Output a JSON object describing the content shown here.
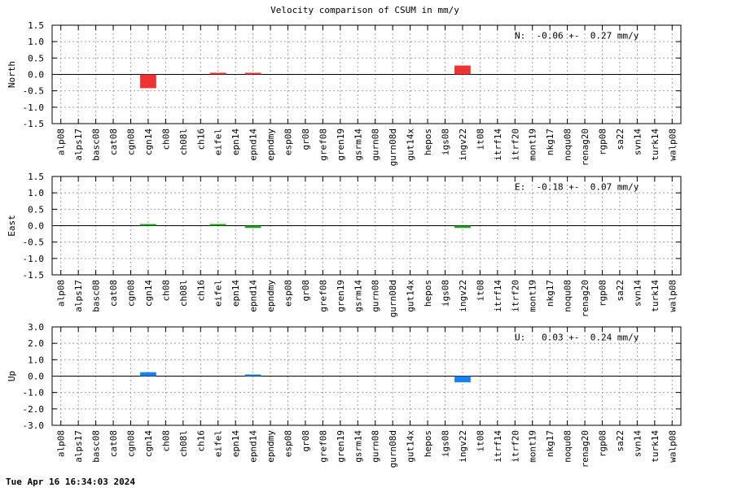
{
  "title": "Velocity comparison of CSUM in mm/y",
  "timestamp": "Tue Apr 16 16:34:03 2024",
  "chart_data": [
    {
      "type": "bar",
      "ylabel": "North",
      "ylim": [
        -1.5,
        1.5
      ],
      "yticks": [
        "1.5",
        "1.0",
        "0.5",
        "0.0",
        "-0.5",
        "-1.0",
        "-1.5"
      ],
      "grid": true,
      "color": "#f03232",
      "annotation": "N:  -0.06 +-  0.27 mm/y",
      "categories": [
        "alp08",
        "alps17",
        "basc08",
        "cat08",
        "cgn08",
        "cgn14",
        "ch08",
        "ch08l",
        "ch16",
        "eifel",
        "epn14",
        "epnd14",
        "epndmy",
        "esp08",
        "gr08",
        "gref08",
        "gren19",
        "gsrm14",
        "gurn08",
        "gurn08d",
        "gut14x",
        "hepos",
        "igs08",
        "ingv22",
        "it08",
        "itrf14",
        "itrf20",
        "mont19",
        "nkg17",
        "noqu08",
        "renag20",
        "rgp08",
        "sa22",
        "svn14",
        "turk14",
        "walp08"
      ],
      "values": [
        0,
        0,
        0,
        0,
        0,
        -0.42,
        0,
        0,
        0,
        0.04,
        0,
        0.02,
        0,
        0,
        0,
        0,
        0,
        0,
        0,
        0,
        0,
        0,
        0,
        0.27,
        0,
        0,
        0,
        0,
        0,
        0,
        0,
        0,
        0,
        0,
        0,
        0
      ]
    },
    {
      "type": "bar",
      "ylabel": "East",
      "ylim": [
        -1.5,
        1.5
      ],
      "yticks": [
        "1.5",
        "1.0",
        "0.5",
        "0.0",
        "-0.5",
        "-1.0",
        "-1.5"
      ],
      "grid": true,
      "color": "#1aa51a",
      "annotation": "E:  -0.18 +-  0.07 mm/y",
      "categories": [
        "alp08",
        "alps17",
        "basc08",
        "cat08",
        "cgn08",
        "cgn14",
        "ch08",
        "ch08l",
        "ch16",
        "eifel",
        "epn14",
        "epnd14",
        "epndmy",
        "esp08",
        "gr08",
        "gref08",
        "gren19",
        "gsrm14",
        "gurn08",
        "gurn08d",
        "gut14x",
        "hepos",
        "igs08",
        "ingv22",
        "it08",
        "itrf14",
        "itrf20",
        "mont19",
        "nkg17",
        "noqu08",
        "renag20",
        "rgp08",
        "sa22",
        "svn14",
        "turk14",
        "walp08"
      ],
      "values": [
        0,
        0,
        0,
        0,
        0,
        0.04,
        0,
        0,
        0,
        0.04,
        0,
        -0.07,
        0,
        0,
        0,
        0,
        0,
        0,
        0,
        0,
        0,
        0,
        0,
        -0.07,
        0,
        0,
        0,
        0,
        0,
        0,
        0,
        0,
        0,
        0,
        0,
        0
      ]
    },
    {
      "type": "bar",
      "ylabel": "Up",
      "ylim": [
        -3.0,
        3.0
      ],
      "yticks": [
        "3.0",
        "2.0",
        "1.0",
        "0.0",
        "-1.0",
        "-2.0",
        "-3.0"
      ],
      "grid": true,
      "color": "#1a82f0",
      "annotation": "U:   0.03 +-  0.24 mm/y",
      "categories": [
        "alp08",
        "alps17",
        "basc08",
        "cat08",
        "cgn08",
        "cgn14",
        "ch08",
        "ch08l",
        "ch16",
        "eifel",
        "epn14",
        "epnd14",
        "epndmy",
        "esp08",
        "gr08",
        "gref08",
        "gren19",
        "gsrm14",
        "gurn08",
        "gurn08d",
        "gut14x",
        "hepos",
        "igs08",
        "ingv22",
        "it08",
        "itrf14",
        "itrf20",
        "mont19",
        "nkg17",
        "noqu08",
        "renag20",
        "rgp08",
        "sa22",
        "svn14",
        "turk14",
        "walp08"
      ],
      "values": [
        0,
        0,
        0,
        0,
        0,
        0.24,
        0,
        0,
        0,
        0,
        0,
        0.04,
        0,
        0,
        0,
        0,
        0,
        0,
        0,
        0,
        0,
        0,
        0,
        -0.38,
        0,
        0,
        0,
        0,
        0,
        0,
        0,
        0,
        0,
        0,
        0,
        0
      ]
    }
  ]
}
